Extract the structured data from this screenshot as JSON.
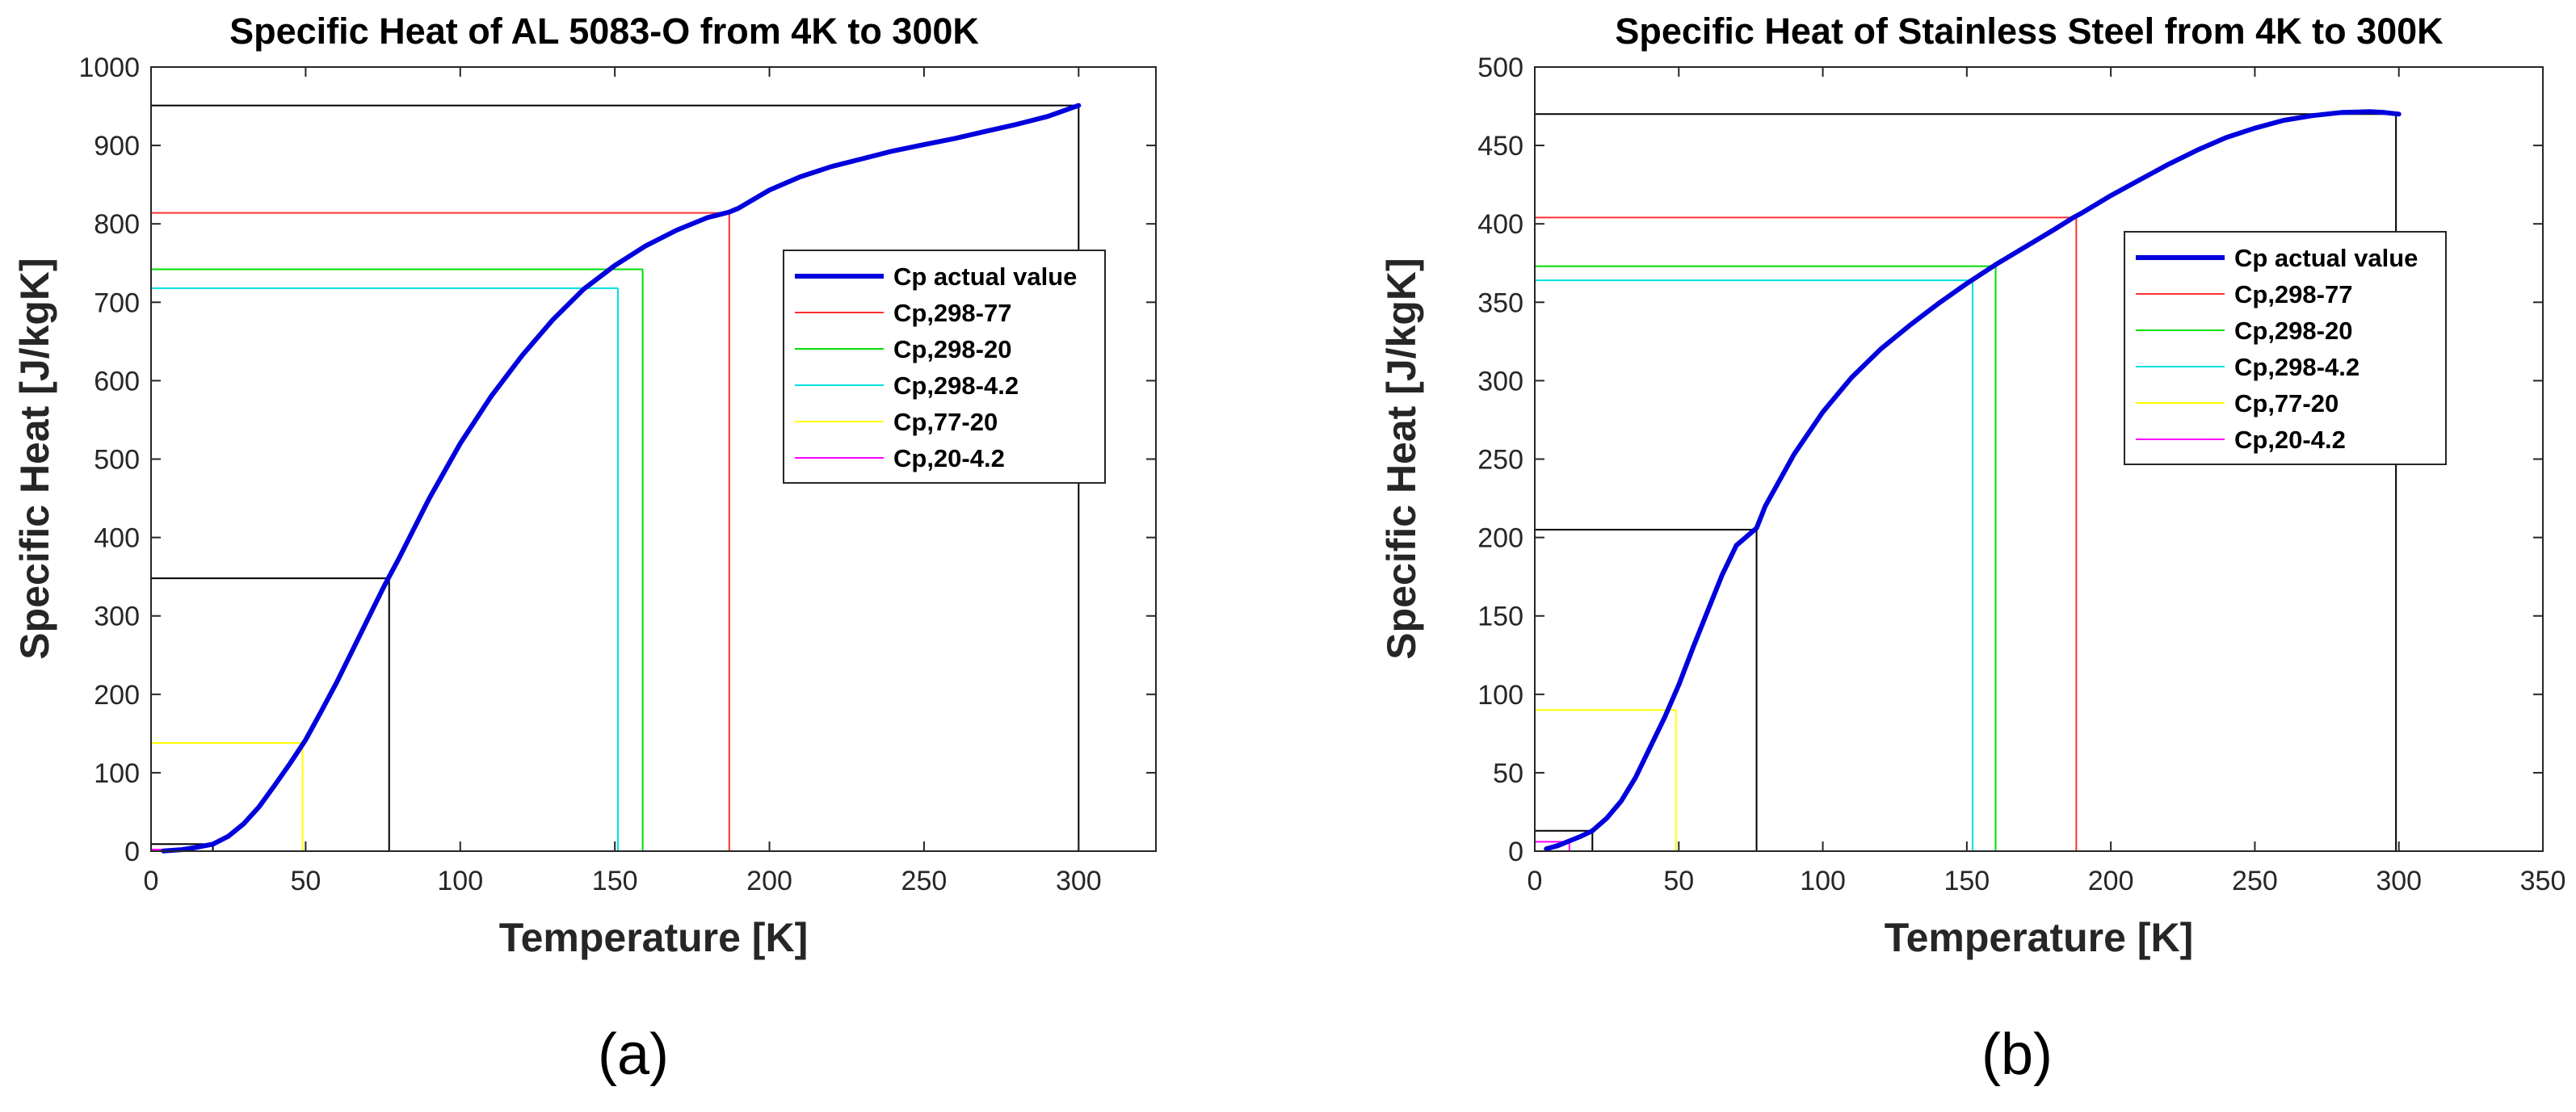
{
  "chart_data": [
    {
      "type": "line",
      "panel_label": "(a)",
      "title": "Specific Heat of AL 5083-O from 4K to 300K",
      "xlabel": "Temperature [K]",
      "ylabel": "Specific Heat [J/kgK]",
      "xlim": [
        0,
        325
      ],
      "ylim": [
        0,
        1000
      ],
      "xticks": [
        0,
        50,
        100,
        150,
        200,
        250,
        300
      ],
      "yticks": [
        0,
        100,
        200,
        300,
        400,
        500,
        600,
        700,
        800,
        900,
        1000
      ],
      "grid": false,
      "legend_position": "right",
      "series": [
        {
          "name": "Cp actual value",
          "color": "#0000dd",
          "x": [
            4,
            10,
            15,
            20,
            25,
            30,
            35,
            40,
            45,
            50,
            55,
            60,
            65,
            70,
            75,
            77,
            80,
            90,
            100,
            110,
            120,
            130,
            140,
            150,
            160,
            170,
            180,
            187,
            190,
            200,
            210,
            220,
            230,
            240,
            250,
            260,
            270,
            280,
            290,
            300
          ],
          "y": [
            0.3,
            2,
            5,
            9,
            19,
            35,
            57,
            84,
            112,
            142,
            178,
            215,
            255,
            295,
            335,
            350,
            372,
            450,
            520,
            580,
            632,
            678,
            717,
            747,
            772,
            792,
            808,
            815,
            820,
            843,
            860,
            873,
            883,
            893,
            901,
            909,
            918,
            927,
            937,
            951
          ]
        },
        {
          "name": "Cp,298-77",
          "color": "#ff3030"
        },
        {
          "name": "Cp,298-20",
          "color": "#00dd00"
        },
        {
          "name": "Cp,298-4.2",
          "color": "#00e0e0"
        },
        {
          "name": "Cp,77-20",
          "color": "#ffff00"
        },
        {
          "name": "Cp,20-4.2",
          "color": "#ff00ff"
        }
      ],
      "reference_lines": [
        {
          "x": 300,
          "y": 951,
          "color": "#000000"
        },
        {
          "x": 77,
          "y": 348,
          "color": "#000000"
        },
        {
          "x": 20,
          "y": 9,
          "color": "#000000"
        },
        {
          "x": 187,
          "y": 814,
          "color": "#ff3030"
        },
        {
          "x": 159,
          "y": 742,
          "color": "#00dd00"
        },
        {
          "x": 151,
          "y": 718,
          "color": "#00e0e0"
        },
        {
          "x": 49,
          "y": 138,
          "color": "#ffff00"
        },
        {
          "x": 11,
          "y": 2,
          "color": "#ff00ff"
        }
      ]
    },
    {
      "type": "line",
      "panel_label": "(b)",
      "title": "Specific Heat of Stainless Steel from 4K to 300K",
      "xlabel": "Temperature [K]",
      "ylabel": "Specific Heat [J/kgK]",
      "xlim": [
        0,
        350
      ],
      "ylim": [
        0,
        500
      ],
      "xticks": [
        0,
        50,
        100,
        150,
        200,
        250,
        300,
        350
      ],
      "yticks": [
        0,
        50,
        100,
        150,
        200,
        250,
        300,
        350,
        400,
        450,
        500
      ],
      "grid": false,
      "legend_position": "right",
      "series": [
        {
          "name": "Cp actual value",
          "color": "#0000dd",
          "x": [
            4,
            8,
            12,
            16,
            20,
            25,
            30,
            35,
            40,
            45,
            50,
            55,
            60,
            65,
            70,
            77,
            80,
            90,
            100,
            110,
            120,
            130,
            140,
            150,
            160,
            170,
            180,
            187,
            190,
            200,
            210,
            220,
            230,
            240,
            250,
            260,
            270,
            280,
            290,
            295,
            300
          ],
          "y": [
            1.5,
            3.5,
            6.5,
            9.5,
            13,
            21,
            32,
            47,
            66,
            85,
            106,
            130,
            153,
            176,
            195,
            206,
            220,
            253,
            280,
            302,
            320,
            335,
            349,
            362,
            374,
            385,
            396,
            404,
            407,
            418,
            428,
            438,
            447,
            455,
            461,
            466,
            469,
            471,
            471.5,
            471,
            470
          ]
        },
        {
          "name": "Cp,298-77",
          "color": "#ff3030"
        },
        {
          "name": "Cp,298-20",
          "color": "#00dd00"
        },
        {
          "name": "Cp,298-4.2",
          "color": "#00e0e0"
        },
        {
          "name": "Cp,77-20",
          "color": "#ffff00"
        },
        {
          "name": "Cp,20-4.2",
          "color": "#ff00ff"
        }
      ],
      "reference_lines": [
        {
          "x": 299,
          "y": 470,
          "color": "#000000"
        },
        {
          "x": 77,
          "y": 205,
          "color": "#000000"
        },
        {
          "x": 20,
          "y": 13,
          "color": "#000000"
        },
        {
          "x": 188,
          "y": 404,
          "color": "#ff3030"
        },
        {
          "x": 160,
          "y": 373,
          "color": "#00dd00"
        },
        {
          "x": 152,
          "y": 364,
          "color": "#00e0e0"
        },
        {
          "x": 49,
          "y": 90,
          "color": "#ffff00"
        },
        {
          "x": 12,
          "y": 6,
          "color": "#ff00ff"
        }
      ]
    }
  ]
}
